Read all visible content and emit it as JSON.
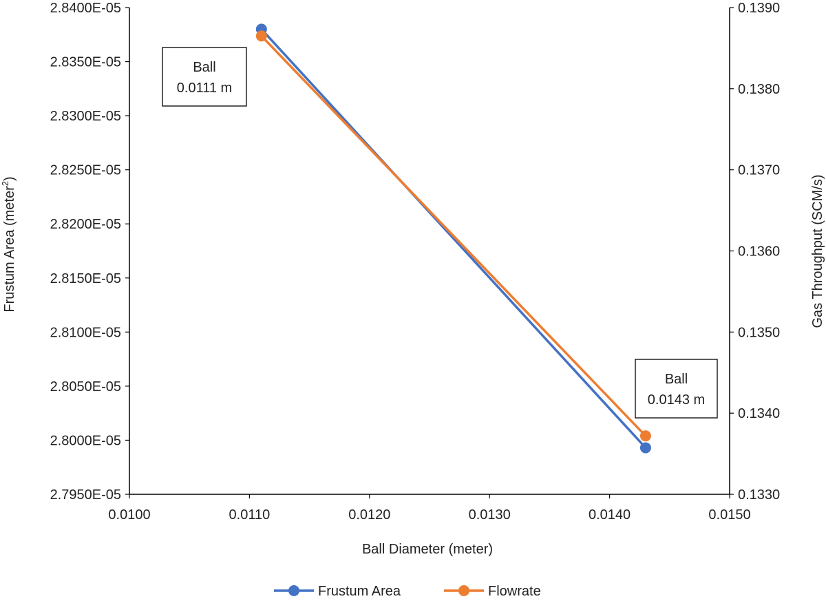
{
  "chart_data": {
    "type": "line",
    "x_axis": {
      "label": "Ball Diameter (meter)",
      "range": [
        0.01,
        0.015
      ],
      "ticks": [
        "0.0100",
        "0.0110",
        "0.0120",
        "0.0130",
        "0.0140",
        "0.0150"
      ]
    },
    "y_axis_left": {
      "label_main": "Frustum Area (meter",
      "label_sup": "2",
      "label_end": ")",
      "range": [
        2.795e-05,
        2.84e-05
      ],
      "ticks": [
        "2.8400E-05",
        "2.8350E-05",
        "2.8300E-05",
        "2.8250E-05",
        "2.8200E-05",
        "2.8150E-05",
        "2.8100E-05",
        "2.8050E-05",
        "2.8000E-05",
        "2.7950E-05"
      ]
    },
    "y_axis_right": {
      "label": "Gas Throughput (SCM/s)",
      "range": [
        0.133,
        0.139
      ],
      "ticks": [
        "0.1390",
        "0.1380",
        "0.1370",
        "0.1360",
        "0.1350",
        "0.1340",
        "0.1330"
      ]
    },
    "series": [
      {
        "name": "Frustum Area",
        "axis": "left",
        "color": "#4472C4",
        "x": [
          0.0111,
          0.0143
        ],
        "y": [
          2.838e-05,
          2.7993e-05
        ]
      },
      {
        "name": "Flowrate",
        "axis": "right",
        "color": "#ED7D31",
        "x": [
          0.0111,
          0.0143
        ],
        "y": [
          0.13865,
          0.13372
        ]
      }
    ],
    "annotations": [
      {
        "line1": "Ball",
        "line2": "0.0111 m",
        "x": 0.0111
      },
      {
        "line1": "Ball",
        "line2": "0.0143 m",
        "x": 0.0143
      }
    ],
    "legend_position": "bottom",
    "grid": false
  }
}
